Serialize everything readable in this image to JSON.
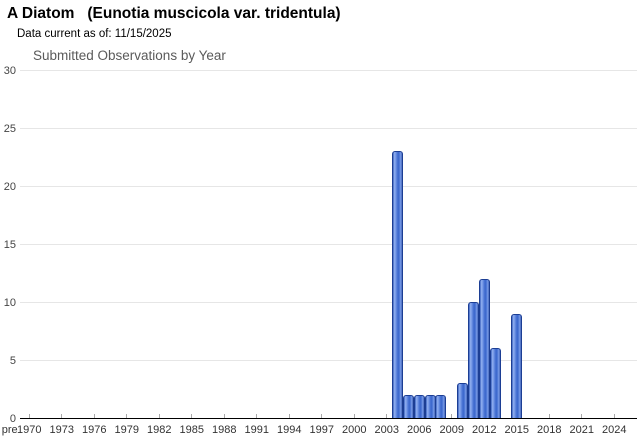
{
  "header": {
    "title": "A Diatom   (Eunotia muscicola var. tridentula)",
    "subtitle": "Data current as of: 11/15/2025"
  },
  "chart_data": {
    "type": "bar",
    "title": "Submitted Observations by Year",
    "xlabel": "",
    "ylabel": "",
    "ylim": [
      0,
      30
    ],
    "y_ticks": [
      "0",
      "5",
      "10",
      "15",
      "20",
      "25",
      "30"
    ],
    "x_tick_labels": [
      "pre",
      "1970",
      "1973",
      "1976",
      "1979",
      "1982",
      "1985",
      "1988",
      "1991",
      "1994",
      "1997",
      "2000",
      "2003",
      "2006",
      "2009",
      "2012",
      "2015",
      "2018",
      "2021",
      "2024"
    ],
    "grid": true,
    "legend": false,
    "bars": [
      {
        "year": 2004,
        "value": 23
      },
      {
        "year": 2005,
        "value": 2
      },
      {
        "year": 2006,
        "value": 2
      },
      {
        "year": 2007,
        "value": 2
      },
      {
        "year": 2008,
        "value": 2
      },
      {
        "year": 2010,
        "value": 3
      },
      {
        "year": 2011,
        "value": 10
      },
      {
        "year": 2012,
        "value": 12
      },
      {
        "year": 2013,
        "value": 6
      },
      {
        "year": 2015,
        "value": 9
      }
    ],
    "colors": {
      "bar_fill": "#4a74d4",
      "bar_highlight": "#8aa9ee",
      "bar_edge": "#1c3e94",
      "gridline": "#e6e6e6",
      "axis": "#000000",
      "chart_title_text": "#5a5a5a",
      "tick_text": "#444444"
    }
  }
}
